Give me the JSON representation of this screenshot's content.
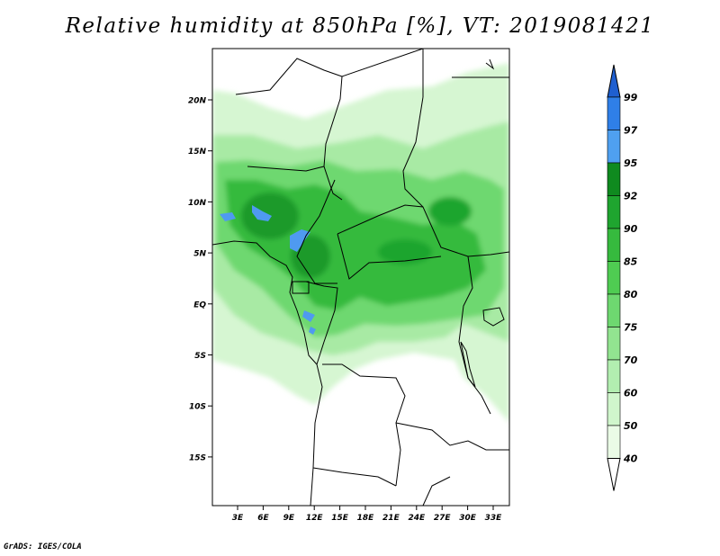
{
  "title": "Relative humidity at 850hPa [%], VT: 2019081421",
  "credit": "GrADS: IGES/COLA",
  "map": {
    "lat_labels": [
      "20N",
      "15N",
      "10N",
      "5N",
      "EQ",
      "5S",
      "10S",
      "15S"
    ],
    "lon_labels": [
      "3E",
      "6E",
      "9E",
      "12E",
      "15E",
      "18E",
      "21E",
      "24E",
      "27E",
      "30E",
      "33E"
    ]
  },
  "colorbar": {
    "levels": [
      "99",
      "97",
      "95",
      "92",
      "90",
      "85",
      "80",
      "75",
      "70",
      "60",
      "50",
      "40"
    ],
    "colors": [
      "#1f5fd0",
      "#2f7fe8",
      "#4fa0f0",
      "#0f8a1f",
      "#1fa52f",
      "#36ba3e",
      "#4fcc52",
      "#6ed870",
      "#92e490",
      "#b2eeb0",
      "#d0f6cc",
      "#eafbe6"
    ]
  }
}
